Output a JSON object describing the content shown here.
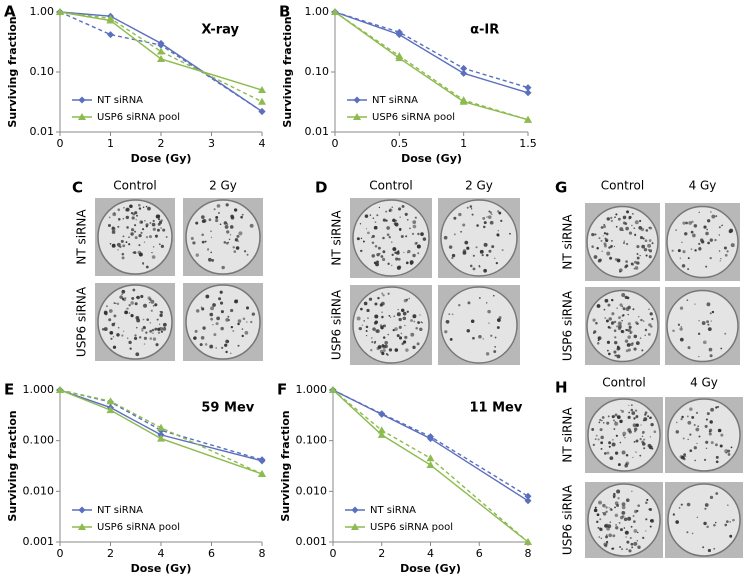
{
  "chart_data": [
    {
      "type": "line",
      "panel_label": "A",
      "title": "X-ray",
      "x_label": "Dose (Gy)",
      "y_label": "Surviving fraction",
      "x": [
        0,
        1,
        2,
        4
      ],
      "xlim": [
        0,
        4
      ],
      "xticks": [
        0,
        1,
        2,
        3,
        4
      ],
      "log_y": true,
      "ylim": [
        0.01,
        1
      ],
      "yticks": [
        {
          "value": 0.01,
          "label": "0.01"
        },
        {
          "value": 0.1,
          "label": "0.10"
        },
        {
          "value": 1,
          "label": "1.00"
        }
      ],
      "legend": "lower left",
      "series": [
        {
          "name": "NT siRNA",
          "color": "#5b6fbf",
          "marker": "diamond",
          "values": [
            1.0,
            0.85,
            0.3,
            0.022
          ],
          "dashed_values": [
            1.0,
            0.42,
            0.28,
            0.022
          ]
        },
        {
          "name": "USP6 siRNA pool",
          "color": "#8dbb4f",
          "marker": "triangle",
          "values": [
            1.0,
            0.72,
            0.165,
            0.05
          ],
          "dashed_values": [
            1.0,
            0.78,
            0.22,
            0.032
          ]
        }
      ]
    },
    {
      "type": "line",
      "panel_label": "B",
      "title": "α-IR",
      "x_label": "Dose (Gy)",
      "y_label": "Surviving fraction",
      "x": [
        0,
        0.5,
        1,
        1.5
      ],
      "xlim": [
        0,
        1.5
      ],
      "xticks": [
        0,
        0.5,
        1,
        1.5
      ],
      "log_y": true,
      "ylim": [
        0.01,
        1
      ],
      "yticks": [
        {
          "value": 0.01,
          "label": "0.01"
        },
        {
          "value": 0.1,
          "label": "0.10"
        },
        {
          "value": 1,
          "label": "1.00"
        }
      ],
      "legend": "lower left",
      "series": [
        {
          "name": "NT siRNA",
          "color": "#5b6fbf",
          "marker": "diamond",
          "values": [
            1.0,
            0.42,
            0.095,
            0.045
          ],
          "dashed_values": [
            1.0,
            0.46,
            0.115,
            0.055
          ]
        },
        {
          "name": "USP6 siRNA pool",
          "color": "#8dbb4f",
          "marker": "triangle",
          "values": [
            1.0,
            0.17,
            0.032,
            0.016
          ],
          "dashed_values": [
            1.0,
            0.185,
            0.034,
            0.016
          ]
        }
      ]
    },
    {
      "type": "line",
      "panel_label": "E",
      "title": "59 Mev",
      "x_label": "Dose (Gy)",
      "y_label": "Surviving fraction",
      "x": [
        0,
        2,
        4,
        8
      ],
      "xlim": [
        0,
        8
      ],
      "xticks": [
        0,
        2,
        4,
        6,
        8
      ],
      "log_y": true,
      "ylim": [
        0.001,
        1
      ],
      "yticks": [
        {
          "value": 0.001,
          "label": "0.001"
        },
        {
          "value": 0.01,
          "label": "0.010"
        },
        {
          "value": 0.1,
          "label": "0.100"
        },
        {
          "value": 1,
          "label": "1.000"
        }
      ],
      "legend": "lower left",
      "series": [
        {
          "name": "NT siRNA",
          "color": "#5b6fbf",
          "marker": "diamond",
          "values": [
            1.0,
            0.45,
            0.13,
            0.04
          ],
          "dashed_values": [
            1.0,
            0.58,
            0.16,
            0.042
          ]
        },
        {
          "name": "USP6 siRNA pool",
          "color": "#8dbb4f",
          "marker": "triangle",
          "values": [
            1.0,
            0.4,
            0.11,
            0.022
          ],
          "dashed_values": [
            1.0,
            0.6,
            0.18,
            0.022
          ]
        }
      ]
    },
    {
      "type": "line",
      "panel_label": "F",
      "title": "11 Mev",
      "x_label": "Dose (Gy)",
      "y_label": "Surviving fraction",
      "x": [
        0,
        2,
        4,
        8
      ],
      "xlim": [
        0,
        8
      ],
      "xticks": [
        0,
        2,
        4,
        6,
        8
      ],
      "log_y": true,
      "ylim": [
        0.001,
        1
      ],
      "yticks": [
        {
          "value": 0.001,
          "label": "0.001"
        },
        {
          "value": 0.01,
          "label": "0.010"
        },
        {
          "value": 0.1,
          "label": "0.100"
        },
        {
          "value": 1,
          "label": "1.000"
        }
      ],
      "legend": "lower left",
      "series": [
        {
          "name": "NT siRNA",
          "color": "#5b6fbf",
          "marker": "diamond",
          "values": [
            1.0,
            0.33,
            0.11,
            0.0065
          ],
          "dashed_values": [
            1.0,
            0.34,
            0.12,
            0.008
          ]
        },
        {
          "name": "USP6 siRNA pool",
          "color": "#8dbb4f",
          "marker": "triangle",
          "values": [
            1.0,
            0.13,
            0.033,
            0.001
          ],
          "dashed_values": [
            1.0,
            0.16,
            0.045,
            0.001
          ]
        }
      ]
    }
  ],
  "image_panels": [
    {
      "label": "C",
      "columns": [
        "Control",
        "2 Gy"
      ],
      "rows": [
        "NT siRNA",
        "USP6 siRNA"
      ]
    },
    {
      "label": "D",
      "columns": [
        "Control",
        "2 Gy"
      ],
      "rows": [
        "NT siRNA",
        "USP6 siRNA"
      ]
    },
    {
      "label": "G",
      "columns": [
        "Control",
        "4 Gy"
      ],
      "rows": [
        "NT siRNA",
        "USP6 siRNA"
      ]
    },
    {
      "label": "H",
      "columns": [
        "Control",
        "4 Gy"
      ],
      "rows": [
        "NT siRNA",
        "USP6 siRNA"
      ]
    }
  ]
}
